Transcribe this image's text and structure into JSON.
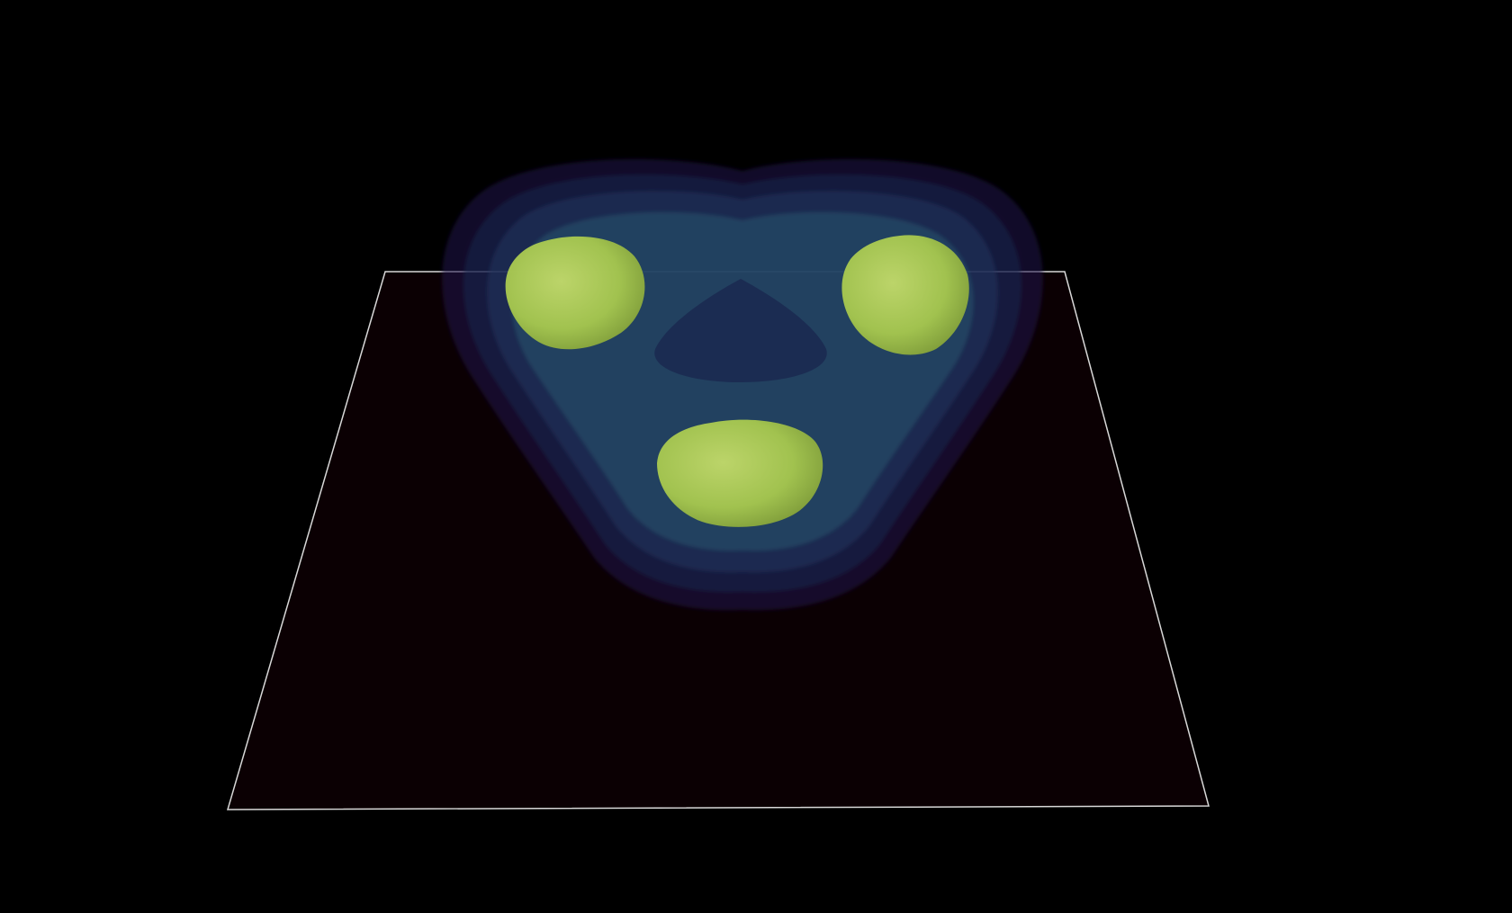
{
  "viewer": {
    "background": "#000000",
    "plane": {
      "fill": "#0b0003",
      "outline": "#d8d8d8"
    },
    "isosurfaces": [
      {
        "level": "outer",
        "color": "#1c1a4a",
        "opacity": 0.55
      },
      {
        "level": "second",
        "color": "#1d2450",
        "opacity": 0.55
      },
      {
        "level": "third",
        "color": "#20355c",
        "opacity": 0.6
      },
      {
        "level": "fourth",
        "color": "#2a5270",
        "opacity": 0.55
      },
      {
        "level": "inner",
        "color": "#a8c94e",
        "opacity": 0.95
      }
    ],
    "center_hole_color": "#1b2c52"
  }
}
